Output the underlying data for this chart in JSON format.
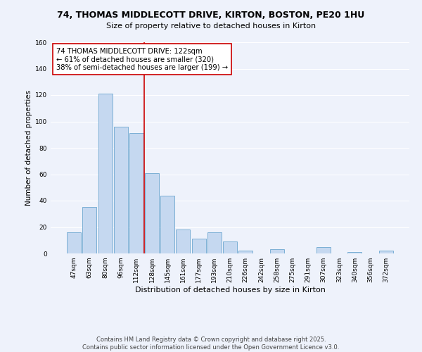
{
  "title1": "74, THOMAS MIDDLECOTT DRIVE, KIRTON, BOSTON, PE20 1HU",
  "title2": "Size of property relative to detached houses in Kirton",
  "xlabel": "Distribution of detached houses by size in Kirton",
  "ylabel": "Number of detached properties",
  "bar_color": "#c5d8f0",
  "bar_edge_color": "#7bafd4",
  "categories": [
    "47sqm",
    "63sqm",
    "80sqm",
    "96sqm",
    "112sqm",
    "128sqm",
    "145sqm",
    "161sqm",
    "177sqm",
    "193sqm",
    "210sqm",
    "226sqm",
    "242sqm",
    "258sqm",
    "275sqm",
    "291sqm",
    "307sqm",
    "323sqm",
    "340sqm",
    "356sqm",
    "372sqm"
  ],
  "values": [
    16,
    35,
    121,
    96,
    91,
    61,
    44,
    18,
    11,
    16,
    9,
    2,
    0,
    3,
    0,
    0,
    5,
    0,
    1,
    0,
    2
  ],
  "vline_x_idx": 5,
  "vline_color": "#cc0000",
  "annotation_line1": "74 THOMAS MIDDLECOTT DRIVE: 122sqm",
  "annotation_line2": "← 61% of detached houses are smaller (320)",
  "annotation_line3": "38% of semi-detached houses are larger (199) →",
  "ylim": [
    0,
    160
  ],
  "yticks": [
    0,
    20,
    40,
    60,
    80,
    100,
    120,
    140,
    160
  ],
  "footnote1": "Contains HM Land Registry data © Crown copyright and database right 2025.",
  "footnote2": "Contains public sector information licensed under the Open Government Licence v3.0.",
  "background_color": "#eef2fb",
  "grid_color": "#ffffff"
}
